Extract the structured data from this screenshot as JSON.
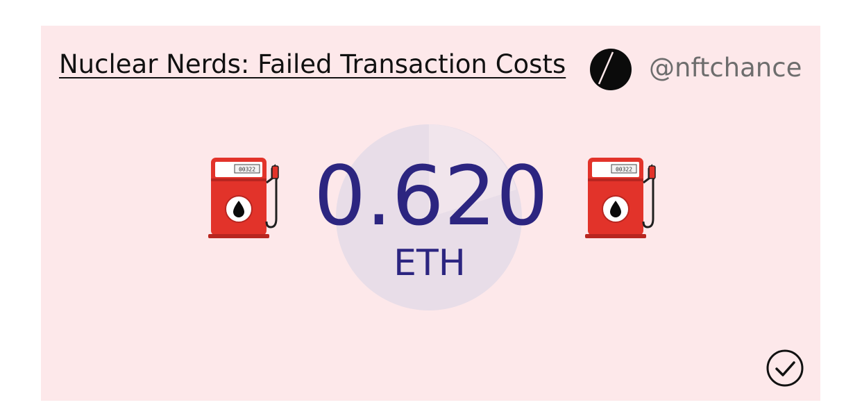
{
  "header": {
    "title": "Nuclear Nerds: Failed Transaction Costs",
    "handle": "@nftchance",
    "logo_icon": "half-circle-logo-icon"
  },
  "metric": {
    "value": "0.620",
    "unit": "ETH"
  },
  "icons": {
    "left": "fuel-pump-icon",
    "right": "fuel-pump-icon",
    "verify": "checkmark-circle-icon"
  },
  "colors": {
    "card_background": "#fde8ea",
    "value_text": "#2c2580",
    "pump_red": "#e2332a"
  }
}
